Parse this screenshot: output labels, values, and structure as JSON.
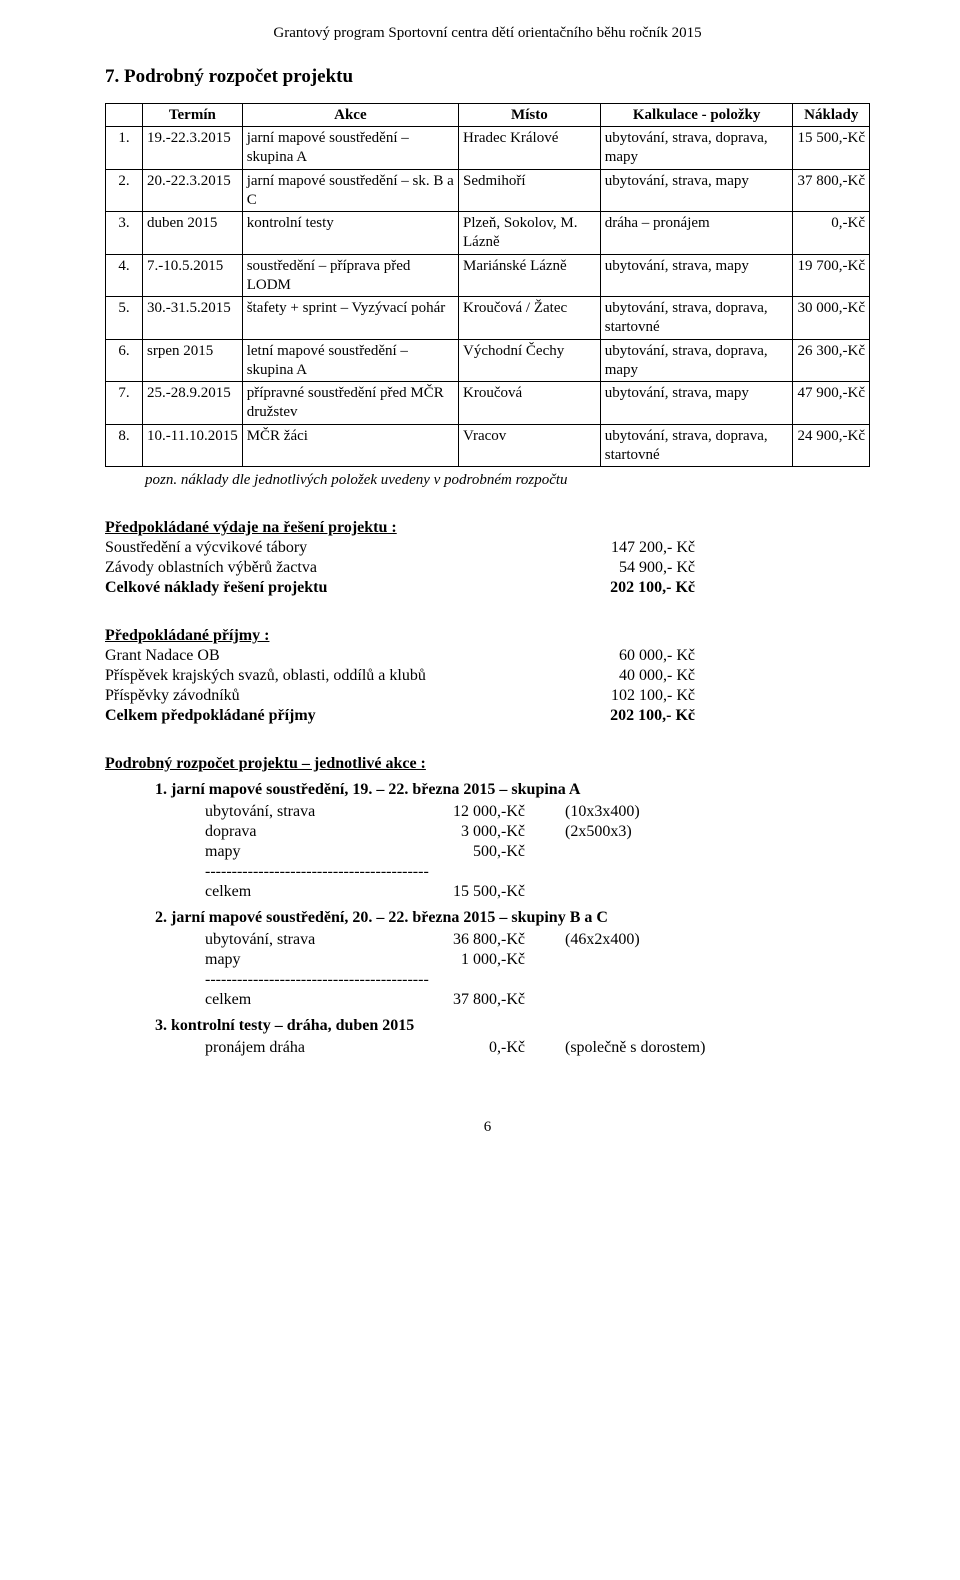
{
  "header": "Grantový program Sportovní centra dětí orientačního běhu ročník 2015",
  "section_title": "7. Podrobný rozpočet projektu",
  "table": {
    "headers": [
      "",
      "Termín",
      "Akce",
      "Místo",
      "Kalkulace - položky",
      "Náklady"
    ],
    "rows": [
      {
        "n": "1.",
        "termin": "19.-22.3.2015",
        "akce": "jarní mapové soustředění – skupina A",
        "misto": "Hradec Králové",
        "kalk": "ubytování, strava, doprava, mapy",
        "nak": "15 500,-Kč"
      },
      {
        "n": "2.",
        "termin": "20.-22.3.2015",
        "akce": "jarní mapové soustředění – sk. B a C",
        "misto": "Sedmihoří",
        "kalk": "ubytování, strava, mapy",
        "nak": "37 800,-Kč"
      },
      {
        "n": "3.",
        "termin": "duben 2015",
        "akce": "kontrolní testy",
        "misto": "Plzeň, Sokolov, M. Lázně",
        "kalk": "dráha – pronájem",
        "nak": "0,-Kč"
      },
      {
        "n": "4.",
        "termin": "7.-10.5.2015",
        "akce": "soustředění – příprava před LODM",
        "misto": "Mariánské Lázně",
        "kalk": "ubytování, strava, mapy",
        "nak": "19 700,-Kč"
      },
      {
        "n": "5.",
        "termin": "30.-31.5.2015",
        "akce": "štafety + sprint – Vyzývací pohár",
        "misto": "Kroučová / Žatec",
        "kalk": "ubytování, strava, doprava, startovné",
        "nak": "30 000,-Kč"
      },
      {
        "n": "6.",
        "termin": "srpen 2015",
        "akce": "letní mapové soustředění – skupina A",
        "misto": "Východní Čechy",
        "kalk": "ubytování, strava, doprava, mapy",
        "nak": "26 300,-Kč"
      },
      {
        "n": "7.",
        "termin": "25.-28.9.2015",
        "akce": "přípravné soustředění před MČR družstev",
        "misto": "Kroučová",
        "kalk": "ubytování, strava, mapy",
        "nak": "47 900,-Kč"
      },
      {
        "n": "8.",
        "termin": "10.-11.10.2015",
        "akce": "MČR žáci",
        "misto": "Vracov",
        "kalk": "ubytování, strava, doprava, startovné",
        "nak": "24 900,-Kč"
      }
    ]
  },
  "note": "pozn. náklady dle jednotlivých položek uvedeny v podrobném rozpočtu",
  "expenses": {
    "title": "Předpokládané výdaje na řešení projektu :",
    "rows": [
      {
        "label": "Soustředění a výcvikové tábory",
        "val": "147 200,- Kč",
        "bold": false
      },
      {
        "label": "Závody oblastních výběrů žactva",
        "val": "54 900,- Kč",
        "bold": false
      },
      {
        "label": "Celkové náklady řešení projektu",
        "val": "202 100,- Kč",
        "bold": true
      }
    ]
  },
  "income": {
    "title": "Předpokládané příjmy :",
    "rows": [
      {
        "label": "Grant Nadace OB",
        "val": "60 000,- Kč",
        "bold": false
      },
      {
        "label": "Příspěvek krajských svazů, oblasti, oddílů a klubů",
        "val": "40 000,- Kč",
        "bold": false
      },
      {
        "label": "Příspěvky závodníků",
        "val": "102 100,- Kč",
        "bold": false
      },
      {
        "label": "Celkem předpokládané příjmy",
        "val": "202 100,- Kč",
        "bold": true
      }
    ]
  },
  "detail_title": "Podrobný rozpočet projektu – jednotlivé akce :",
  "actions": [
    {
      "heading": "1. jarní mapové soustředění, 19. – 22. března 2015 – skupina A",
      "lines": [
        {
          "label": "ubytování, strava",
          "amount": "12 000,-Kč",
          "note": "(10x3x400)"
        },
        {
          "label": "doprava",
          "amount": "3 000,-Kč",
          "note": "(2x500x3)"
        },
        {
          "label": "mapy",
          "amount": "500,-Kč",
          "note": ""
        }
      ],
      "sum_label": "celkem",
      "sum_amount": "15 500,-Kč"
    },
    {
      "heading": "2. jarní mapové soustředění, 20. – 22. března 2015 – skupiny B a C",
      "lines": [
        {
          "label": "ubytování, strava",
          "amount": "36 800,-Kč",
          "note": "(46x2x400)"
        },
        {
          "label": "mapy",
          "amount": "1 000,-Kč",
          "note": ""
        }
      ],
      "sum_label": "celkem",
      "sum_amount": "37 800,-Kč"
    },
    {
      "heading": "3. kontrolní testy – dráha, duben 2015",
      "lines": [
        {
          "label": "pronájem dráha",
          "amount": "0,-Kč",
          "note": "(společně s dorostem)"
        }
      ],
      "sum_label": null,
      "sum_amount": null
    }
  ],
  "dashes": "------------------------------------------",
  "page_number": "6"
}
